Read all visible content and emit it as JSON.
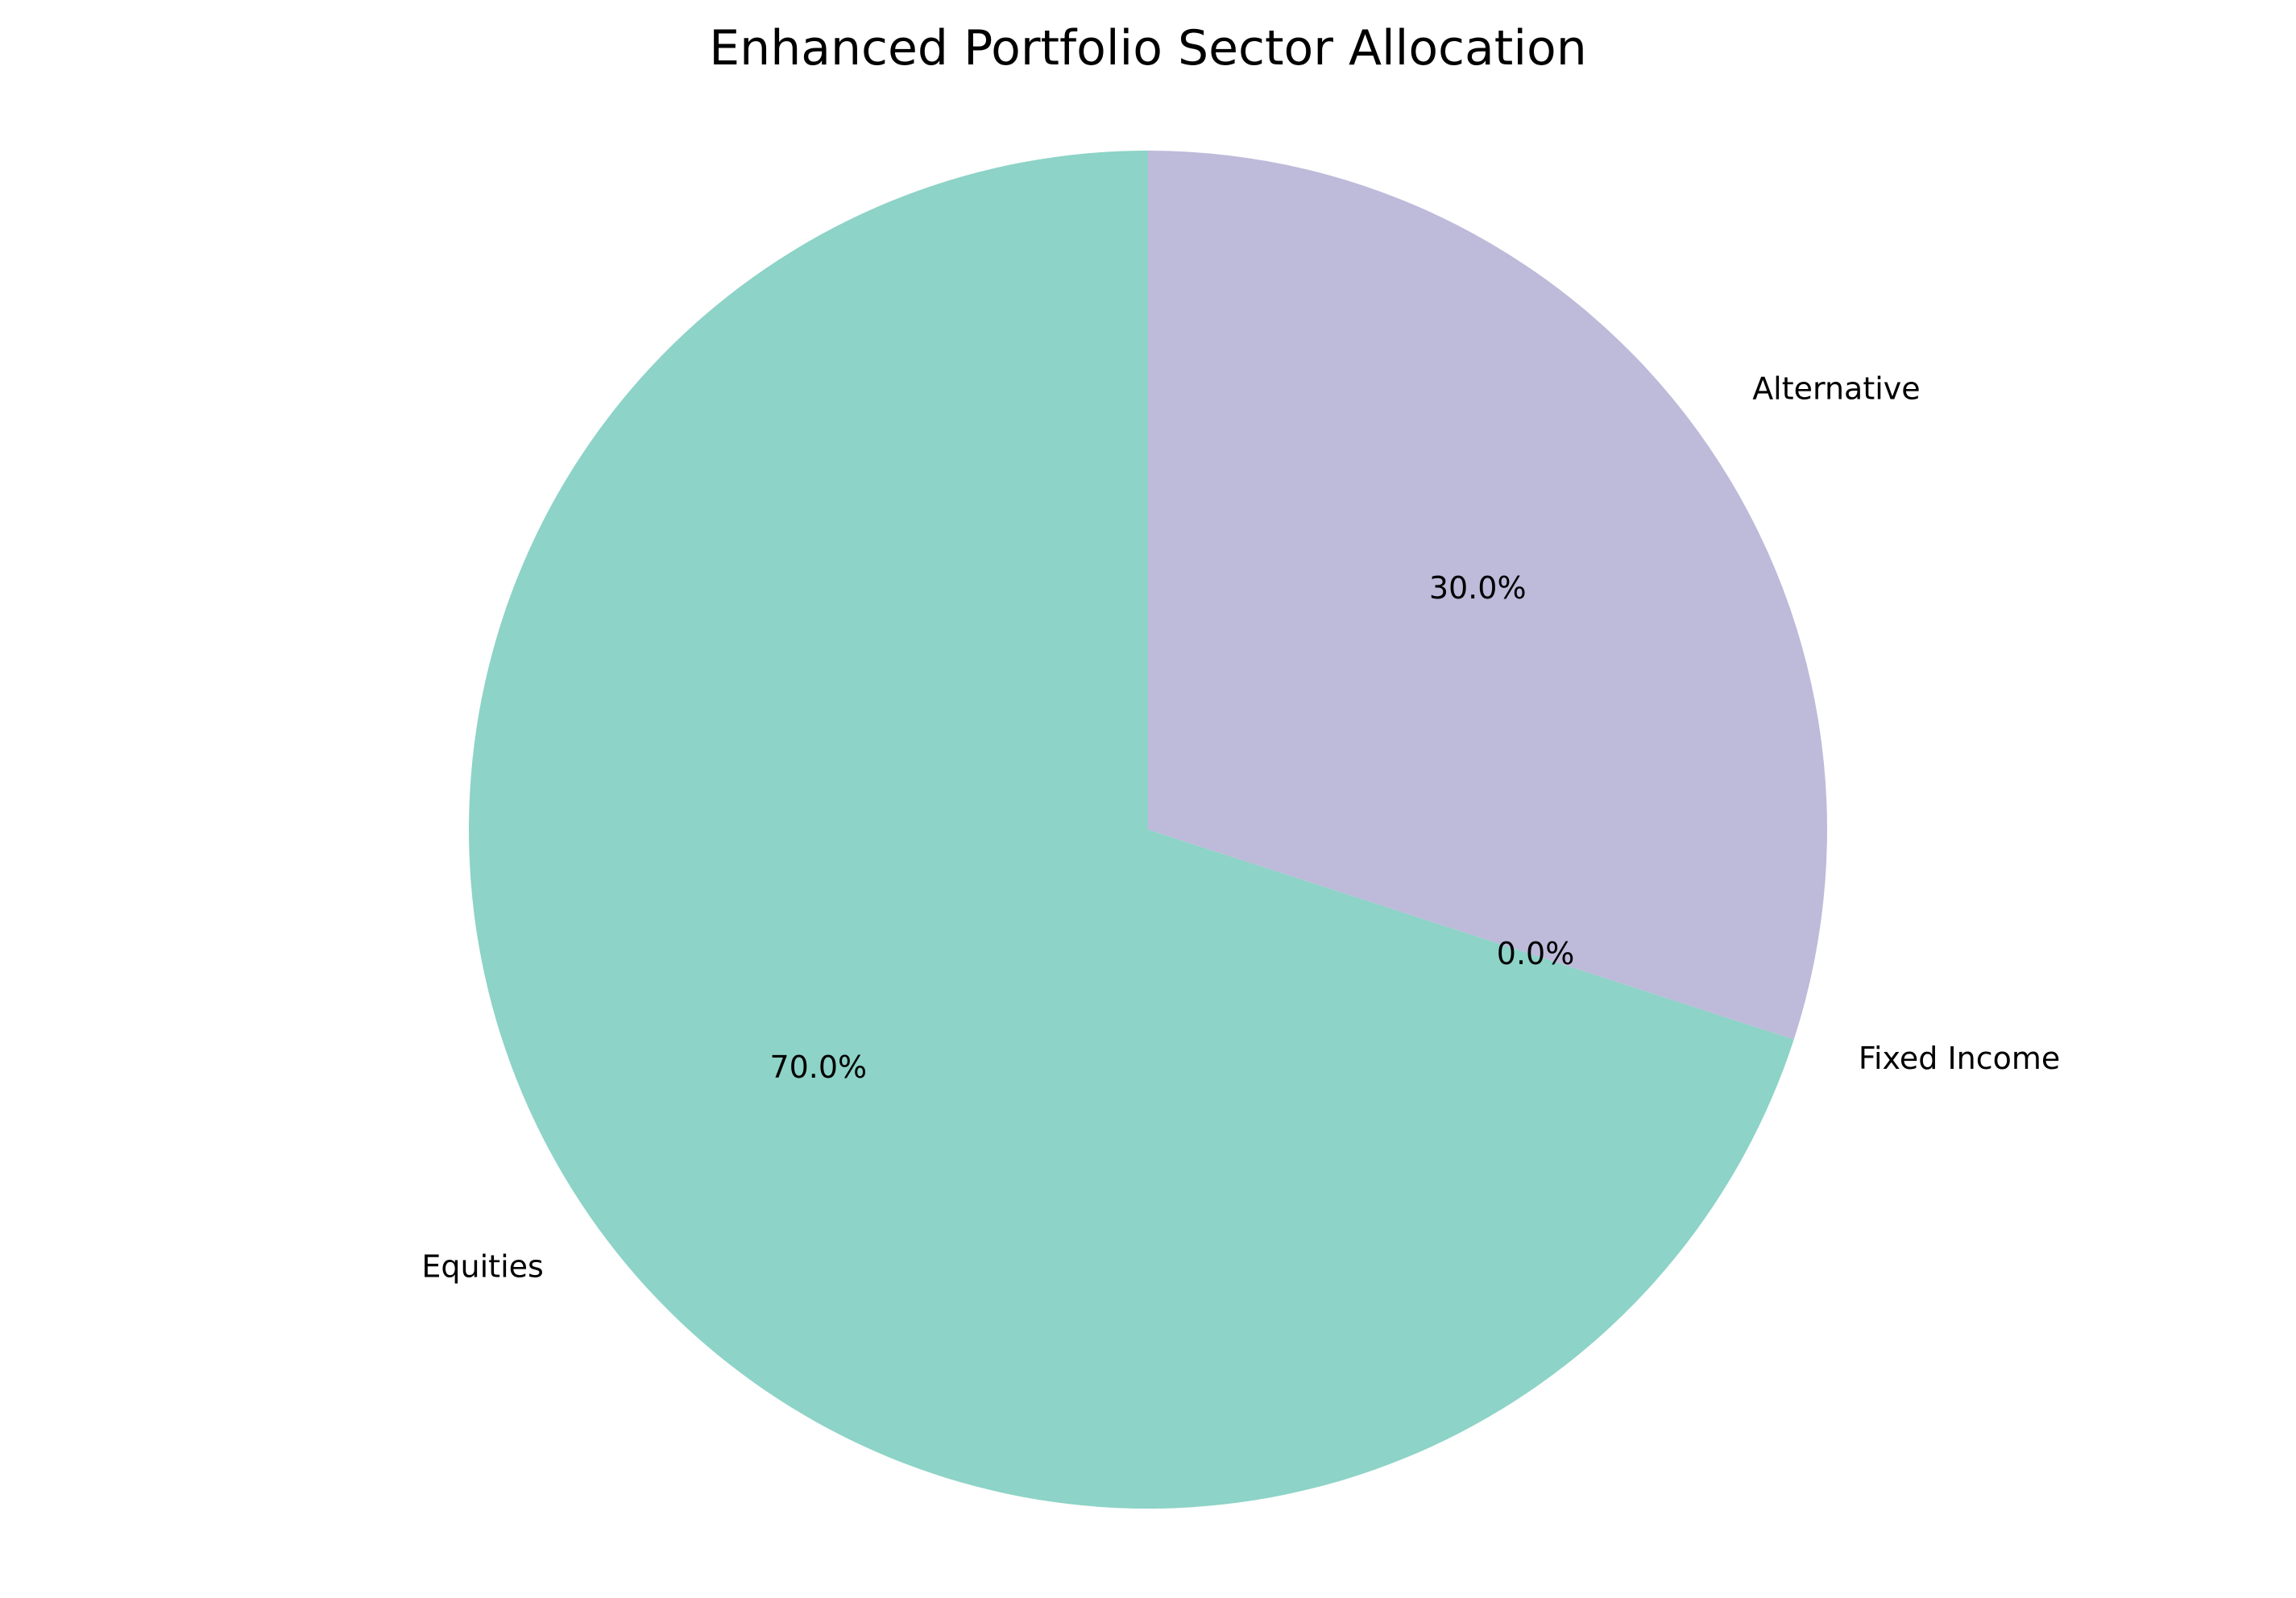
{
  "chart_data": {
    "type": "pie",
    "title": "Enhanced Portfolio Sector Allocation",
    "slices": [
      {
        "label": "Equities",
        "value": 70.0,
        "pct_label": "70.0%",
        "color": "#8dd3c7"
      },
      {
        "label": "Fixed Income",
        "value": 0.0,
        "pct_label": "0.0%",
        "color": "#ffffb3"
      },
      {
        "label": "Alternative",
        "value": 30.0,
        "pct_label": "30.0%",
        "color": "#bebada"
      }
    ],
    "start_angle_deg": 90,
    "direction": "counterclockwise"
  }
}
